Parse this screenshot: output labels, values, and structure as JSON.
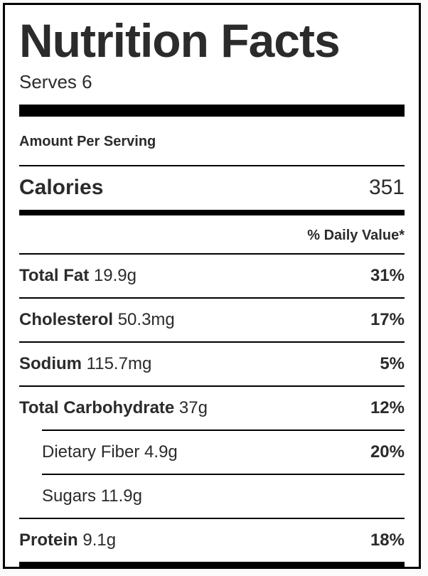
{
  "label": {
    "title": "Nutrition Facts",
    "serves": "Serves 6",
    "amount_per_serving": "Amount Per Serving",
    "calories": {
      "name": "Calories",
      "value": "351"
    },
    "daily_value_header": "% Daily Value*",
    "rows": [
      {
        "name": "Total Fat",
        "amount": "19.9g",
        "dv": "31%",
        "indent": false
      },
      {
        "name": "Cholesterol",
        "amount": "50.3mg",
        "dv": "17%",
        "indent": false
      },
      {
        "name": "Sodium",
        "amount": "115.7mg",
        "dv": "5%",
        "indent": false
      },
      {
        "name": "Total Carbohydrate",
        "amount": "37g",
        "dv": "12%",
        "indent": false
      },
      {
        "name": "Dietary Fiber",
        "amount": "4.9g",
        "dv": "20%",
        "indent": true
      },
      {
        "name": "Sugars",
        "amount": "11.9g",
        "dv": "",
        "indent": true
      },
      {
        "name": "Protein",
        "amount": "9.1g",
        "dv": "18%",
        "indent": false
      }
    ],
    "colors": {
      "text": "#2b2b2b",
      "rule": "#000000",
      "background": "#ffffff",
      "page_background": "#fbfbfb"
    }
  }
}
